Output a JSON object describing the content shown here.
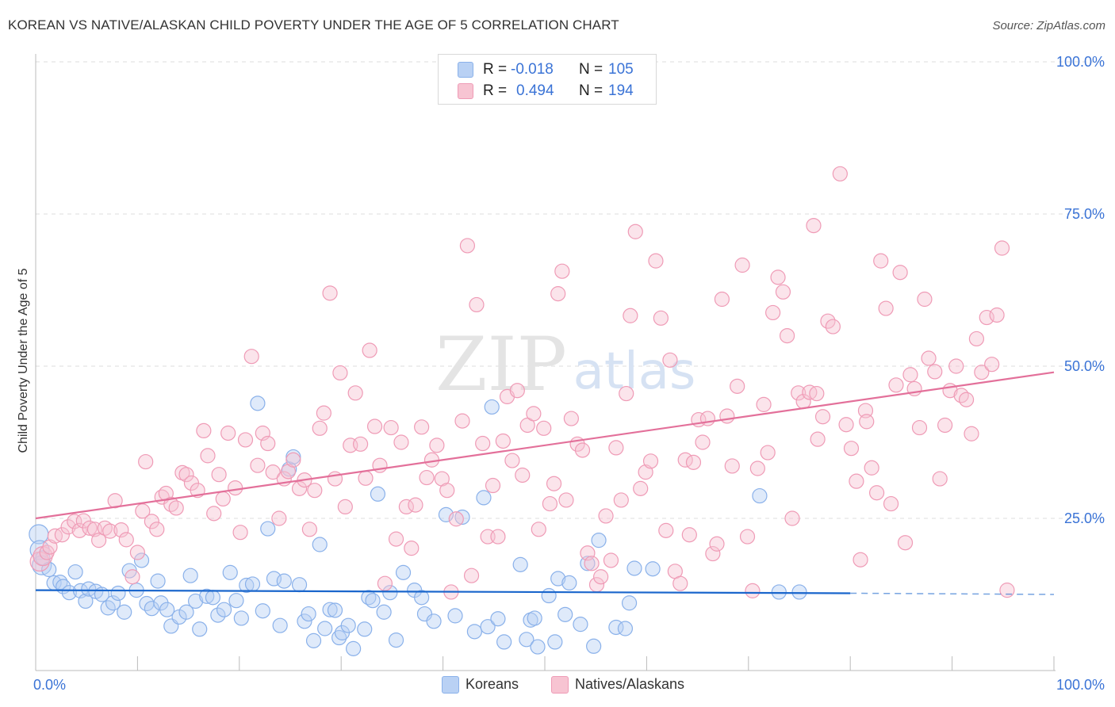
{
  "header": {
    "title": "KOREAN VS NATIVE/ALASKAN CHILD POVERTY UNDER THE AGE OF 5 CORRELATION CHART",
    "source": "Source: ZipAtlas.com"
  },
  "watermark": {
    "zip": "ZIP",
    "atlas": "atlas"
  },
  "legend": {
    "r_label": "R =",
    "n_label": "N =",
    "rows": [
      {
        "r": "-0.018",
        "n": "105"
      },
      {
        "r": "0.494",
        "n": "194"
      }
    ]
  },
  "colors": {
    "korean_fill": "#b9d1f4",
    "korean_stroke": "#8ab1ea",
    "korean_line": "#1a66cc",
    "native_fill": "#f7c4d2",
    "native_stroke": "#ef9bb6",
    "native_line": "#e3709a",
    "axis_tick_text": "#3a73d6",
    "grid": "#dddddd"
  },
  "chart_data": {
    "type": "scatter",
    "title": "KOREAN VS NATIVE/ALASKAN CHILD POVERTY UNDER THE AGE OF 5 CORRELATION CHART",
    "xlabel": "",
    "ylabel": "Child Poverty Under the Age of 5",
    "xlim": [
      0,
      100
    ],
    "ylim": [
      0,
      100
    ],
    "x_tick_labels": [
      "0.0%",
      "100.0%"
    ],
    "y_ticks": [
      25,
      50,
      75,
      100
    ],
    "y_tick_labels": [
      "25.0%",
      "50.0%",
      "75.0%",
      "100.0%"
    ],
    "grid": true,
    "legend_position": "top-center",
    "series": [
      {
        "name": "Koreans",
        "color": "#b9d1f4",
        "stats": {
          "R": -0.018,
          "N": 105
        },
        "trend": {
          "x": [
            0,
            80
          ],
          "y": [
            13.2,
            12.7
          ],
          "dashed_to": [
            100,
            12.5
          ]
        },
        "points": [
          [
            0.3,
            22.4
          ],
          [
            0.4,
            19.8
          ],
          [
            0.6,
            17.3
          ],
          [
            0.7,
            18.5
          ],
          [
            1.3,
            16.6
          ],
          [
            1.8,
            14.4
          ],
          [
            2.4,
            14.5
          ],
          [
            2.7,
            13.8
          ],
          [
            3.3,
            12.8
          ],
          [
            3.9,
            16.2
          ],
          [
            4.4,
            13.1
          ],
          [
            4.9,
            11.4
          ],
          [
            5.2,
            13.4
          ],
          [
            5.9,
            13.0
          ],
          [
            6.5,
            12.5
          ],
          [
            7.1,
            10.3
          ],
          [
            7.6,
            11.1
          ],
          [
            8.1,
            12.7
          ],
          [
            8.7,
            9.6
          ],
          [
            9.2,
            16.4
          ],
          [
            9.9,
            13.2
          ],
          [
            10.4,
            18.1
          ],
          [
            10.9,
            11.0
          ],
          [
            11.4,
            10.2
          ],
          [
            12.0,
            14.7
          ],
          [
            12.3,
            11.1
          ],
          [
            12.9,
            10.0
          ],
          [
            13.3,
            7.3
          ],
          [
            14.1,
            8.8
          ],
          [
            14.8,
            9.6
          ],
          [
            15.2,
            15.6
          ],
          [
            15.7,
            11.4
          ],
          [
            16.1,
            6.8
          ],
          [
            16.8,
            12.2
          ],
          [
            17.4,
            12.0
          ],
          [
            17.9,
            9.1
          ],
          [
            18.5,
            10.0
          ],
          [
            19.1,
            16.1
          ],
          [
            19.7,
            11.5
          ],
          [
            20.2,
            8.6
          ],
          [
            20.7,
            14.0
          ],
          [
            21.3,
            14.2
          ],
          [
            21.8,
            43.9
          ],
          [
            22.3,
            9.8
          ],
          [
            22.8,
            23.3
          ],
          [
            23.4,
            15.1
          ],
          [
            24.0,
            7.4
          ],
          [
            24.4,
            14.7
          ],
          [
            24.9,
            33.1
          ],
          [
            25.3,
            35.1
          ],
          [
            25.9,
            14.1
          ],
          [
            26.4,
            8.1
          ],
          [
            26.8,
            9.3
          ],
          [
            27.3,
            4.9
          ],
          [
            27.9,
            20.7
          ],
          [
            28.4,
            6.9
          ],
          [
            28.9,
            10.0
          ],
          [
            29.4,
            9.9
          ],
          [
            29.8,
            5.4
          ],
          [
            30.1,
            6.2
          ],
          [
            30.7,
            7.4
          ],
          [
            31.2,
            3.6
          ],
          [
            32.3,
            6.8
          ],
          [
            32.7,
            12.0
          ],
          [
            33.1,
            11.5
          ],
          [
            33.6,
            29.0
          ],
          [
            34.2,
            9.6
          ],
          [
            34.8,
            12.8
          ],
          [
            35.4,
            5.0
          ],
          [
            36.1,
            16.1
          ],
          [
            37.2,
            13.2
          ],
          [
            37.9,
            12.0
          ],
          [
            38.2,
            9.3
          ],
          [
            39.1,
            8.1
          ],
          [
            40.3,
            25.6
          ],
          [
            41.2,
            9.0
          ],
          [
            41.9,
            25.2
          ],
          [
            43.1,
            6.4
          ],
          [
            44.0,
            28.4
          ],
          [
            44.4,
            7.2
          ],
          [
            44.8,
            43.3
          ],
          [
            45.4,
            8.5
          ],
          [
            46.0,
            4.7
          ],
          [
            47.6,
            17.4
          ],
          [
            48.2,
            5.1
          ],
          [
            48.6,
            8.3
          ],
          [
            49.0,
            8.6
          ],
          [
            49.3,
            3.9
          ],
          [
            50.4,
            12.3
          ],
          [
            51.0,
            4.7
          ],
          [
            51.3,
            15.1
          ],
          [
            52.0,
            9.2
          ],
          [
            52.4,
            14.4
          ],
          [
            53.5,
            7.6
          ],
          [
            54.2,
            17.6
          ],
          [
            54.8,
            4.0
          ],
          [
            55.3,
            21.4
          ],
          [
            57.0,
            7.1
          ],
          [
            57.9,
            6.9
          ],
          [
            58.3,
            11.1
          ],
          [
            58.8,
            16.8
          ],
          [
            60.6,
            16.7
          ],
          [
            71.1,
            28.7
          ],
          [
            73.0,
            12.9
          ],
          [
            75.0,
            12.9
          ]
        ]
      },
      {
        "name": "Natives/Alaskans",
        "color": "#f7c4d2",
        "stats": {
          "R": 0.494,
          "N": 194
        },
        "trend": {
          "x": [
            0,
            100
          ],
          "y": [
            25.0,
            49.0
          ]
        },
        "points": [
          [
            0.4,
            17.9
          ],
          [
            0.7,
            18.8
          ],
          [
            1.1,
            19.4
          ],
          [
            1.4,
            20.3
          ],
          [
            1.9,
            22.1
          ],
          [
            2.6,
            22.3
          ],
          [
            3.2,
            23.6
          ],
          [
            3.8,
            24.5
          ],
          [
            4.3,
            23.0
          ],
          [
            4.7,
            24.6
          ],
          [
            5.3,
            23.4
          ],
          [
            5.8,
            23.2
          ],
          [
            6.2,
            21.4
          ],
          [
            6.8,
            23.4
          ],
          [
            7.3,
            22.9
          ],
          [
            7.8,
            27.9
          ],
          [
            8.4,
            23.1
          ],
          [
            8.9,
            21.5
          ],
          [
            9.5,
            15.4
          ],
          [
            10.0,
            19.4
          ],
          [
            10.5,
            26.2
          ],
          [
            10.8,
            34.3
          ],
          [
            11.4,
            24.5
          ],
          [
            11.9,
            23.2
          ],
          [
            12.4,
            28.5
          ],
          [
            12.8,
            29.1
          ],
          [
            13.3,
            27.3
          ],
          [
            13.8,
            26.7
          ],
          [
            14.4,
            32.5
          ],
          [
            14.8,
            32.2
          ],
          [
            15.3,
            30.8
          ],
          [
            15.9,
            29.6
          ],
          [
            16.5,
            39.4
          ],
          [
            16.9,
            35.3
          ],
          [
            17.5,
            25.8
          ],
          [
            18.0,
            32.2
          ],
          [
            18.4,
            28.2
          ],
          [
            18.9,
            39.0
          ],
          [
            19.6,
            30.0
          ],
          [
            20.1,
            22.7
          ],
          [
            20.6,
            37.9
          ],
          [
            21.2,
            51.6
          ],
          [
            21.8,
            33.7
          ],
          [
            22.3,
            39.0
          ],
          [
            22.8,
            37.3
          ],
          [
            23.3,
            32.6
          ],
          [
            23.9,
            25.0
          ],
          [
            24.4,
            31.5
          ],
          [
            24.8,
            32.7
          ],
          [
            25.3,
            34.6
          ],
          [
            25.9,
            29.9
          ],
          [
            26.4,
            31.3
          ],
          [
            26.9,
            23.2
          ],
          [
            27.4,
            29.6
          ],
          [
            27.9,
            39.8
          ],
          [
            28.3,
            42.3
          ],
          [
            28.9,
            62.0
          ],
          [
            29.4,
            31.5
          ],
          [
            29.9,
            48.9
          ],
          [
            30.4,
            26.9
          ],
          [
            30.9,
            37.0
          ],
          [
            31.4,
            45.6
          ],
          [
            31.9,
            37.2
          ],
          [
            32.4,
            31.6
          ],
          [
            32.8,
            52.6
          ],
          [
            33.3,
            40.1
          ],
          [
            33.8,
            33.7
          ],
          [
            34.3,
            14.3
          ],
          [
            34.9,
            39.9
          ],
          [
            35.4,
            21.6
          ],
          [
            35.9,
            37.5
          ],
          [
            36.4,
            26.9
          ],
          [
            36.9,
            20.1
          ],
          [
            37.3,
            27.2
          ],
          [
            37.9,
            40.0
          ],
          [
            38.4,
            31.7
          ],
          [
            38.9,
            34.6
          ],
          [
            39.4,
            37.0
          ],
          [
            39.9,
            31.5
          ],
          [
            40.4,
            29.6
          ],
          [
            40.8,
            12.9
          ],
          [
            41.3,
            24.9
          ],
          [
            41.9,
            41.0
          ],
          [
            42.4,
            69.8
          ],
          [
            42.8,
            15.6
          ],
          [
            43.3,
            60.1
          ],
          [
            43.9,
            37.3
          ],
          [
            44.4,
            22.0
          ],
          [
            44.9,
            30.4
          ],
          [
            45.4,
            22.0
          ],
          [
            45.9,
            37.7
          ],
          [
            46.3,
            45.0
          ],
          [
            46.8,
            34.5
          ],
          [
            47.3,
            46.0
          ],
          [
            47.8,
            32.1
          ],
          [
            48.3,
            40.3
          ],
          [
            48.9,
            42.2
          ],
          [
            49.4,
            23.2
          ],
          [
            49.9,
            39.8
          ],
          [
            50.5,
            27.4
          ],
          [
            50.9,
            30.7
          ],
          [
            51.3,
            61.9
          ],
          [
            51.7,
            65.6
          ],
          [
            52.1,
            28.0
          ],
          [
            52.6,
            41.4
          ],
          [
            53.2,
            37.2
          ],
          [
            53.7,
            36.2
          ],
          [
            54.2,
            19.3
          ],
          [
            54.6,
            17.6
          ],
          [
            55.1,
            14.1
          ],
          [
            55.5,
            15.4
          ],
          [
            56.0,
            25.4
          ],
          [
            56.5,
            18.1
          ],
          [
            57.0,
            36.6
          ],
          [
            57.5,
            28.0
          ],
          [
            58.0,
            45.5
          ],
          [
            58.4,
            58.3
          ],
          [
            58.9,
            72.1
          ],
          [
            59.4,
            29.9
          ],
          [
            59.9,
            32.6
          ],
          [
            60.4,
            34.4
          ],
          [
            60.9,
            67.3
          ],
          [
            61.4,
            57.9
          ],
          [
            61.9,
            23.0
          ],
          [
            62.3,
            51.0
          ],
          [
            62.8,
            16.3
          ],
          [
            63.3,
            14.3
          ],
          [
            63.8,
            34.6
          ],
          [
            64.2,
            22.3
          ],
          [
            64.6,
            34.2
          ],
          [
            65.1,
            41.2
          ],
          [
            65.5,
            37.5
          ],
          [
            66.0,
            41.4
          ],
          [
            66.5,
            19.2
          ],
          [
            66.9,
            20.8
          ],
          [
            67.4,
            61.0
          ],
          [
            67.9,
            41.8
          ],
          [
            68.4,
            33.6
          ],
          [
            68.9,
            46.7
          ],
          [
            69.4,
            66.6
          ],
          [
            69.9,
            22.0
          ],
          [
            70.4,
            13.1
          ],
          [
            70.9,
            33.2
          ],
          [
            71.5,
            43.7
          ],
          [
            71.9,
            35.8
          ],
          [
            72.4,
            58.8
          ],
          [
            72.9,
            64.6
          ],
          [
            73.4,
            62.2
          ],
          [
            73.8,
            55.0
          ],
          [
            74.3,
            25.0
          ],
          [
            74.9,
            45.6
          ],
          [
            75.4,
            44.2
          ],
          [
            76.0,
            45.7
          ],
          [
            76.4,
            73.1
          ],
          [
            76.8,
            38.0
          ],
          [
            77.3,
            41.7
          ],
          [
            77.8,
            57.4
          ],
          [
            78.3,
            56.5
          ],
          [
            79.0,
            81.6
          ],
          [
            79.6,
            40.4
          ],
          [
            80.1,
            36.5
          ],
          [
            80.6,
            31.1
          ],
          [
            81.0,
            18.2
          ],
          [
            81.5,
            42.7
          ],
          [
            82.1,
            33.3
          ],
          [
            82.6,
            29.2
          ],
          [
            83.0,
            67.3
          ],
          [
            83.5,
            59.5
          ],
          [
            84.0,
            27.4
          ],
          [
            84.5,
            46.9
          ],
          [
            84.9,
            65.4
          ],
          [
            85.4,
            21.0
          ],
          [
            85.9,
            48.6
          ],
          [
            86.3,
            46.3
          ],
          [
            86.8,
            39.9
          ],
          [
            87.3,
            61.0
          ],
          [
            87.7,
            51.3
          ],
          [
            88.3,
            49.1
          ],
          [
            88.8,
            31.5
          ],
          [
            89.3,
            40.3
          ],
          [
            89.8,
            46.0
          ],
          [
            90.4,
            50.0
          ],
          [
            90.9,
            45.2
          ],
          [
            91.4,
            44.5
          ],
          [
            91.9,
            38.9
          ],
          [
            92.4,
            54.5
          ],
          [
            92.9,
            49.0
          ],
          [
            93.4,
            58.0
          ],
          [
            93.9,
            50.3
          ],
          [
            94.4,
            58.4
          ],
          [
            94.9,
            69.4
          ],
          [
            95.4,
            13.2
          ],
          [
            81.6,
            40.9
          ],
          [
            76.7,
            45.5
          ]
        ]
      }
    ]
  }
}
